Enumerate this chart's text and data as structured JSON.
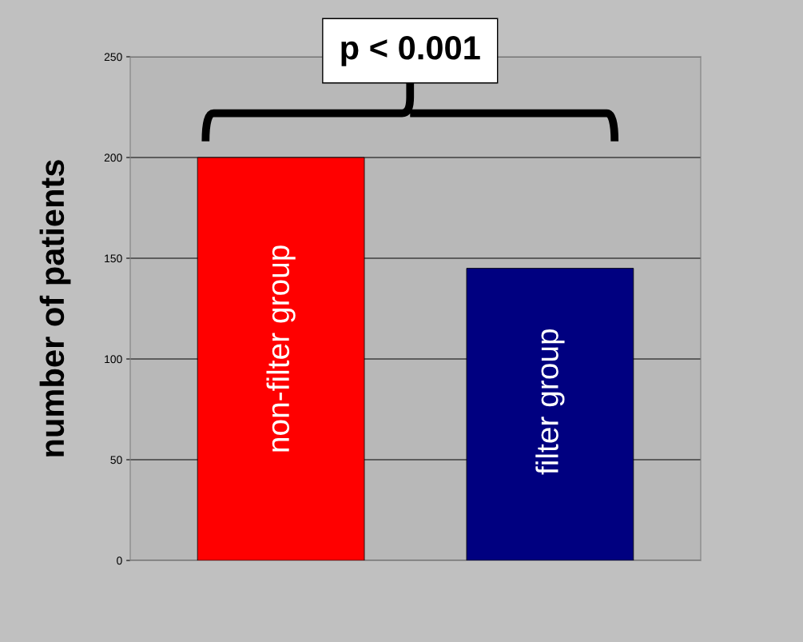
{
  "chart_data": {
    "type": "bar",
    "ylabel": "number of patients",
    "categories": [
      "non-filter group",
      "filter group"
    ],
    "values": [
      200,
      145
    ],
    "colors": [
      "#ff0000",
      "#000080"
    ],
    "ylim": [
      0,
      250
    ],
    "yticks": [
      0,
      50,
      100,
      150,
      200,
      250
    ],
    "grid": "y",
    "annotations": [
      "p < 0.001"
    ]
  }
}
